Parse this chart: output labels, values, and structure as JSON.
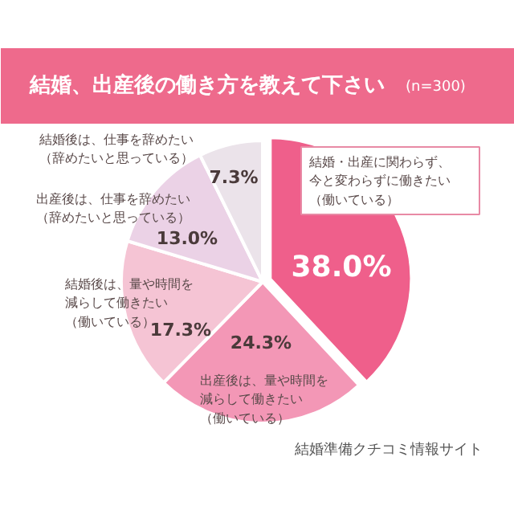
{
  "chart_data": {
    "type": "pie",
    "title": "結婚、出産後の働き方を教えて下さい",
    "subtitle": "(n=300)",
    "categories": [
      "結婚・出産に関わらず、今と変わらずに働きたい（働いている）",
      "出産後は、量や時間を減らして働きたい（働いている）",
      "結婚後は、量や時間を減らして働きたい（働いている）",
      "出産後は、仕事を辞めたい（辞めたいと思っている）",
      "結婚後は、仕事を辞めたい（辞めたいと思っている）"
    ],
    "values": [
      38.0,
      24.3,
      17.3,
      13.0,
      7.3
    ],
    "value_labels": [
      "38.0%",
      "24.3%",
      "17.3%",
      "13.0%",
      "7.3%"
    ],
    "colors": [
      "#ef5f8b",
      "#f397b6",
      "#f5c4d4",
      "#ebd2e6",
      "#ebe3ea"
    ],
    "annotations": [
      "結婚準備クチコミ情報サイト"
    ]
  }
}
